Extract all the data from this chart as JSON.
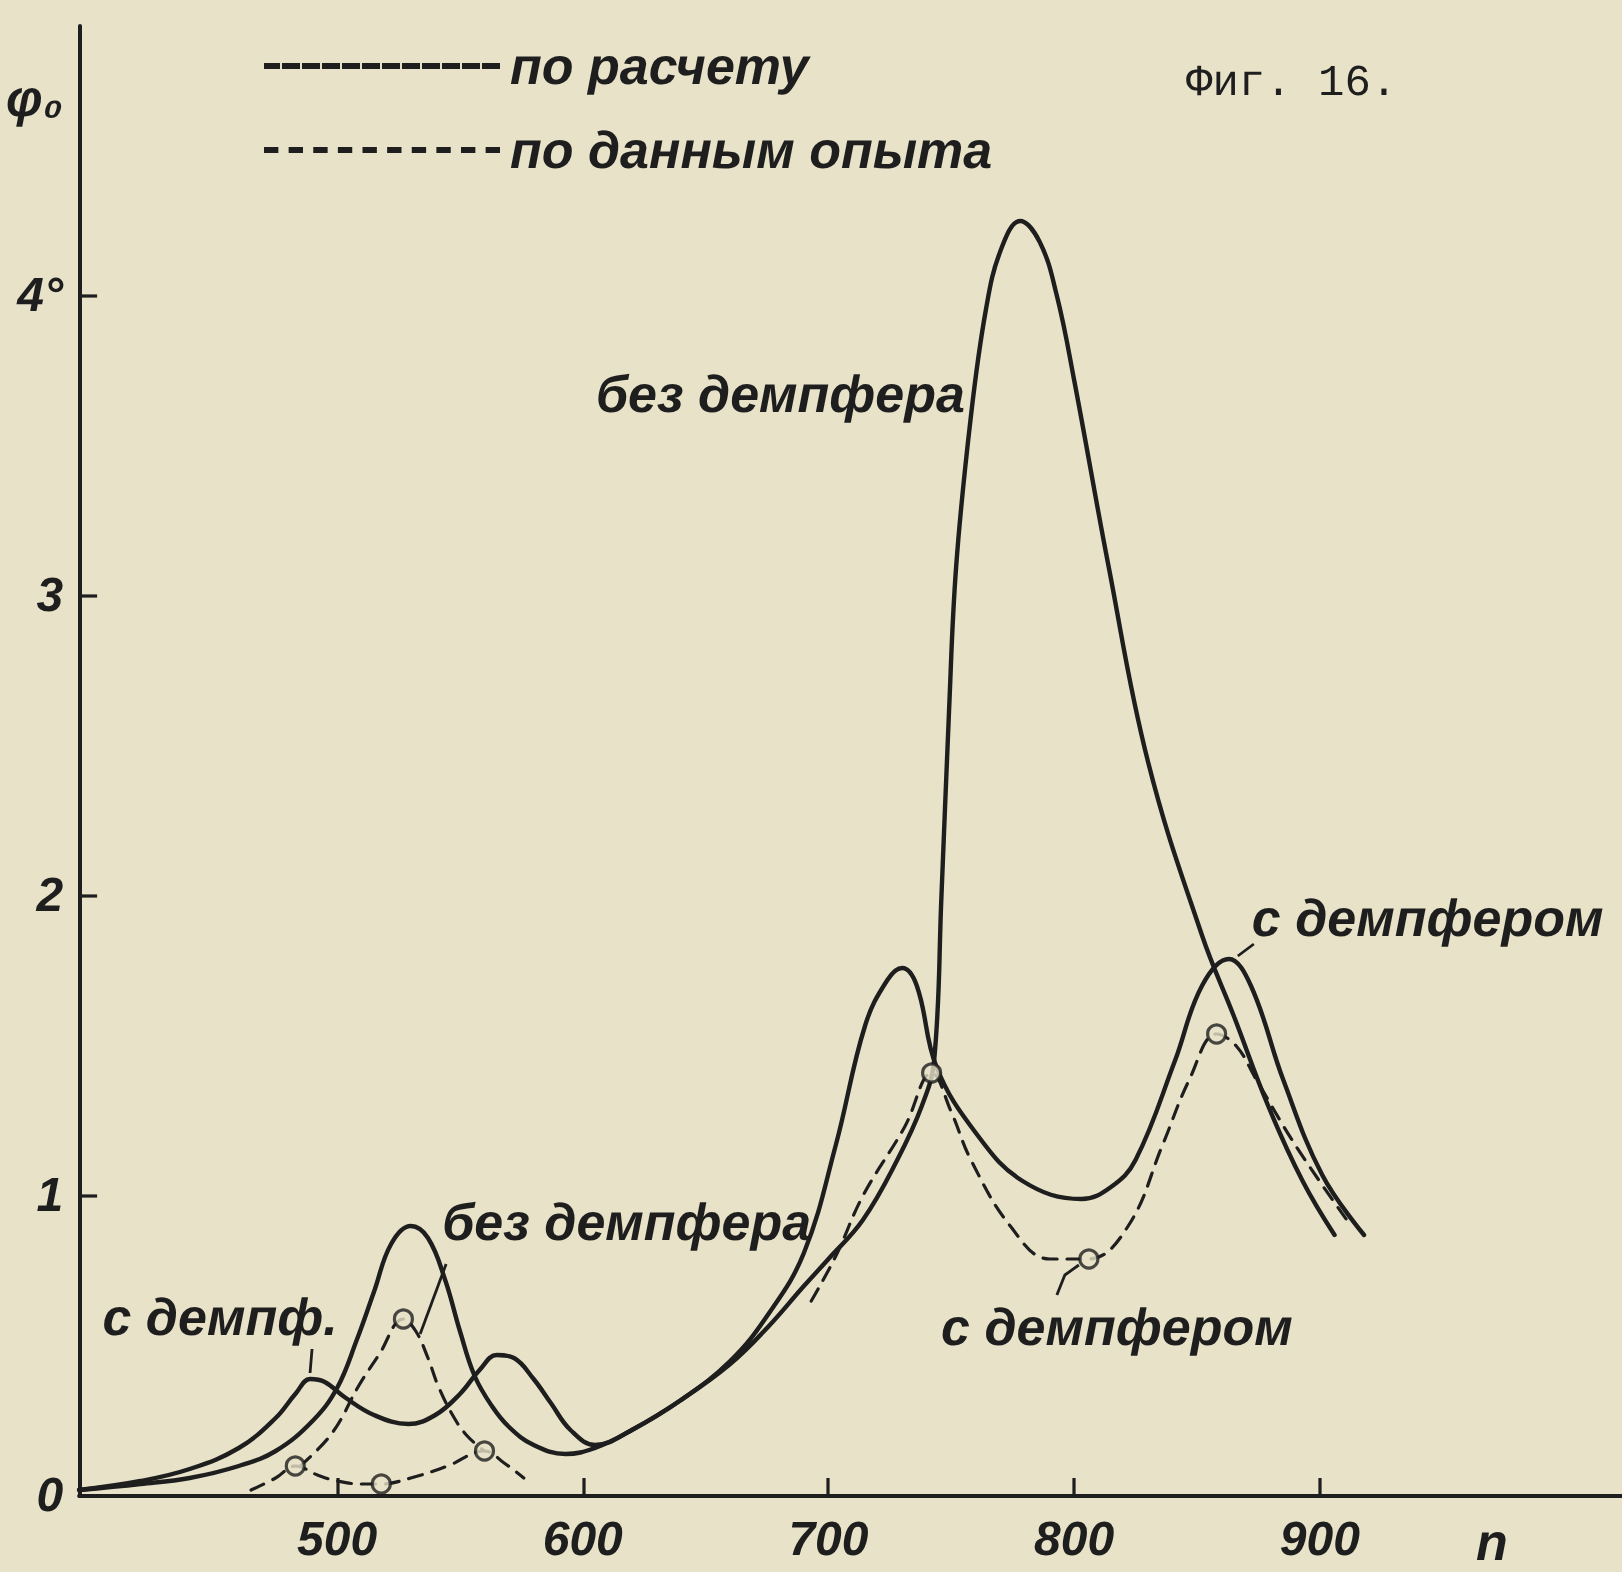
{
  "chart_data": {
    "type": "line",
    "title": "Фиг. 16.",
    "xlabel": "n",
    "ylabel": "φ₀",
    "xlim": [
      395,
      1023
    ],
    "ylim": [
      0,
      4.9
    ],
    "xticks": [
      500,
      600,
      700,
      800,
      900
    ],
    "yticks": [
      0,
      1,
      2,
      3,
      {
        "value": 4,
        "label": "4°"
      }
    ],
    "grid": false,
    "legend": "top left",
    "marker": "none",
    "series": [
      {
        "name": "по расчету",
        "line_style": "solid",
        "color": "#1e1e1e",
        "x": [
          395,
          420,
          440,
          460,
          475,
          490,
          500,
          508,
          515,
          522,
          530,
          537,
          544,
          550,
          556,
          563,
          570,
          580,
          593,
          605,
          620,
          640,
          660,
          675,
          690,
          700,
          714,
          728,
          738,
          743,
          746,
          749,
          752,
          758,
          764,
          770,
          778,
          786,
          793,
          800,
          814,
          830,
          852,
          865,
          879,
          893,
          906
        ],
        "values": [
          0.02,
          0.04,
          0.06,
          0.1,
          0.15,
          0.25,
          0.36,
          0.52,
          0.68,
          0.84,
          0.9,
          0.86,
          0.72,
          0.55,
          0.4,
          0.3,
          0.23,
          0.17,
          0.14,
          0.16,
          0.22,
          0.32,
          0.44,
          0.56,
          0.7,
          0.79,
          0.92,
          1.12,
          1.3,
          1.45,
          2.0,
          2.6,
          3.1,
          3.6,
          3.95,
          4.15,
          4.25,
          4.18,
          4.0,
          3.72,
          3.1,
          2.45,
          1.87,
          1.6,
          1.3,
          1.05,
          0.87
        ]
      },
      {
        "line_style": "solid",
        "color": "#1e1e1e",
        "x": [
          395,
          420,
          440,
          460,
          475,
          483,
          489,
          495,
          503,
          515,
          529,
          540,
          550,
          558,
          565,
          572,
          580,
          587,
          595,
          605,
          620,
          640,
          660,
          675,
          690,
          703,
          715,
          724,
          730,
          736,
          744,
          760,
          779,
          803,
          815,
          825,
          841,
          852,
          863,
          872,
          885,
          901,
          918
        ],
        "values": [
          0.02,
          0.05,
          0.09,
          0.16,
          0.26,
          0.34,
          0.39,
          0.38,
          0.33,
          0.27,
          0.24,
          0.27,
          0.34,
          0.42,
          0.47,
          0.46,
          0.39,
          0.31,
          0.22,
          0.17,
          0.22,
          0.32,
          0.45,
          0.6,
          0.81,
          1.17,
          1.57,
          1.72,
          1.76,
          1.7,
          1.43,
          1.21,
          1.05,
          0.99,
          1.03,
          1.12,
          1.45,
          1.7,
          1.79,
          1.7,
          1.39,
          1.07,
          0.87
        ]
      },
      {
        "name": "по данным опыта",
        "line_style": "dashed",
        "color": "#1e1e1e",
        "x": [
          485,
          498,
          509,
          517,
          527,
          532,
          537,
          541,
          547,
          553,
          560
        ],
        "values": [
          0.1,
          0.21,
          0.37,
          0.47,
          0.59,
          0.55,
          0.46,
          0.37,
          0.27,
          0.2,
          0.15
        ]
      },
      {
        "line_style": "dashed",
        "color": "#1e1e1e",
        "x": [
          465,
          475,
          483,
          492,
          500,
          510,
          518,
          530,
          545,
          560,
          568,
          576
        ],
        "values": [
          0.02,
          0.06,
          0.1,
          0.07,
          0.05,
          0.04,
          0.04,
          0.06,
          0.1,
          0.15,
          0.11,
          0.06
        ]
      },
      {
        "line_style": "dashed",
        "color": "#1e1e1e",
        "x": [
          693,
          703,
          714,
          731,
          742,
          750,
          758,
          774,
          790,
          806,
          822,
          836,
          847,
          858,
          866,
          874,
          890,
          911
        ],
        "values": [
          0.65,
          0.8,
          1.0,
          1.23,
          1.41,
          1.28,
          1.12,
          0.9,
          0.79,
          0.79,
          0.9,
          1.17,
          1.39,
          1.54,
          1.5,
          1.39,
          1.17,
          0.92
        ]
      },
      {
        "type": "scatter",
        "marker": "circle",
        "color": "#1e1e1e",
        "x": [
          483,
          518,
          560,
          527,
          742,
          806,
          858
        ],
        "values": [
          0.1,
          0.04,
          0.15,
          0.59,
          1.41,
          0.79,
          1.54
        ]
      }
    ],
    "annotations": [
      {
        "text": "без демпфера",
        "x": 758,
        "y": 3.6
      },
      {
        "text": "без демпфера",
        "x": 533,
        "y": 0.52
      },
      {
        "text": "с демпф.",
        "x": 489,
        "y": 0.39
      },
      {
        "text": "с демпфером",
        "x": 865,
        "y": 1.78
      },
      {
        "text": "с демпфером",
        "x": 806,
        "y": 0.79
      }
    ]
  }
}
